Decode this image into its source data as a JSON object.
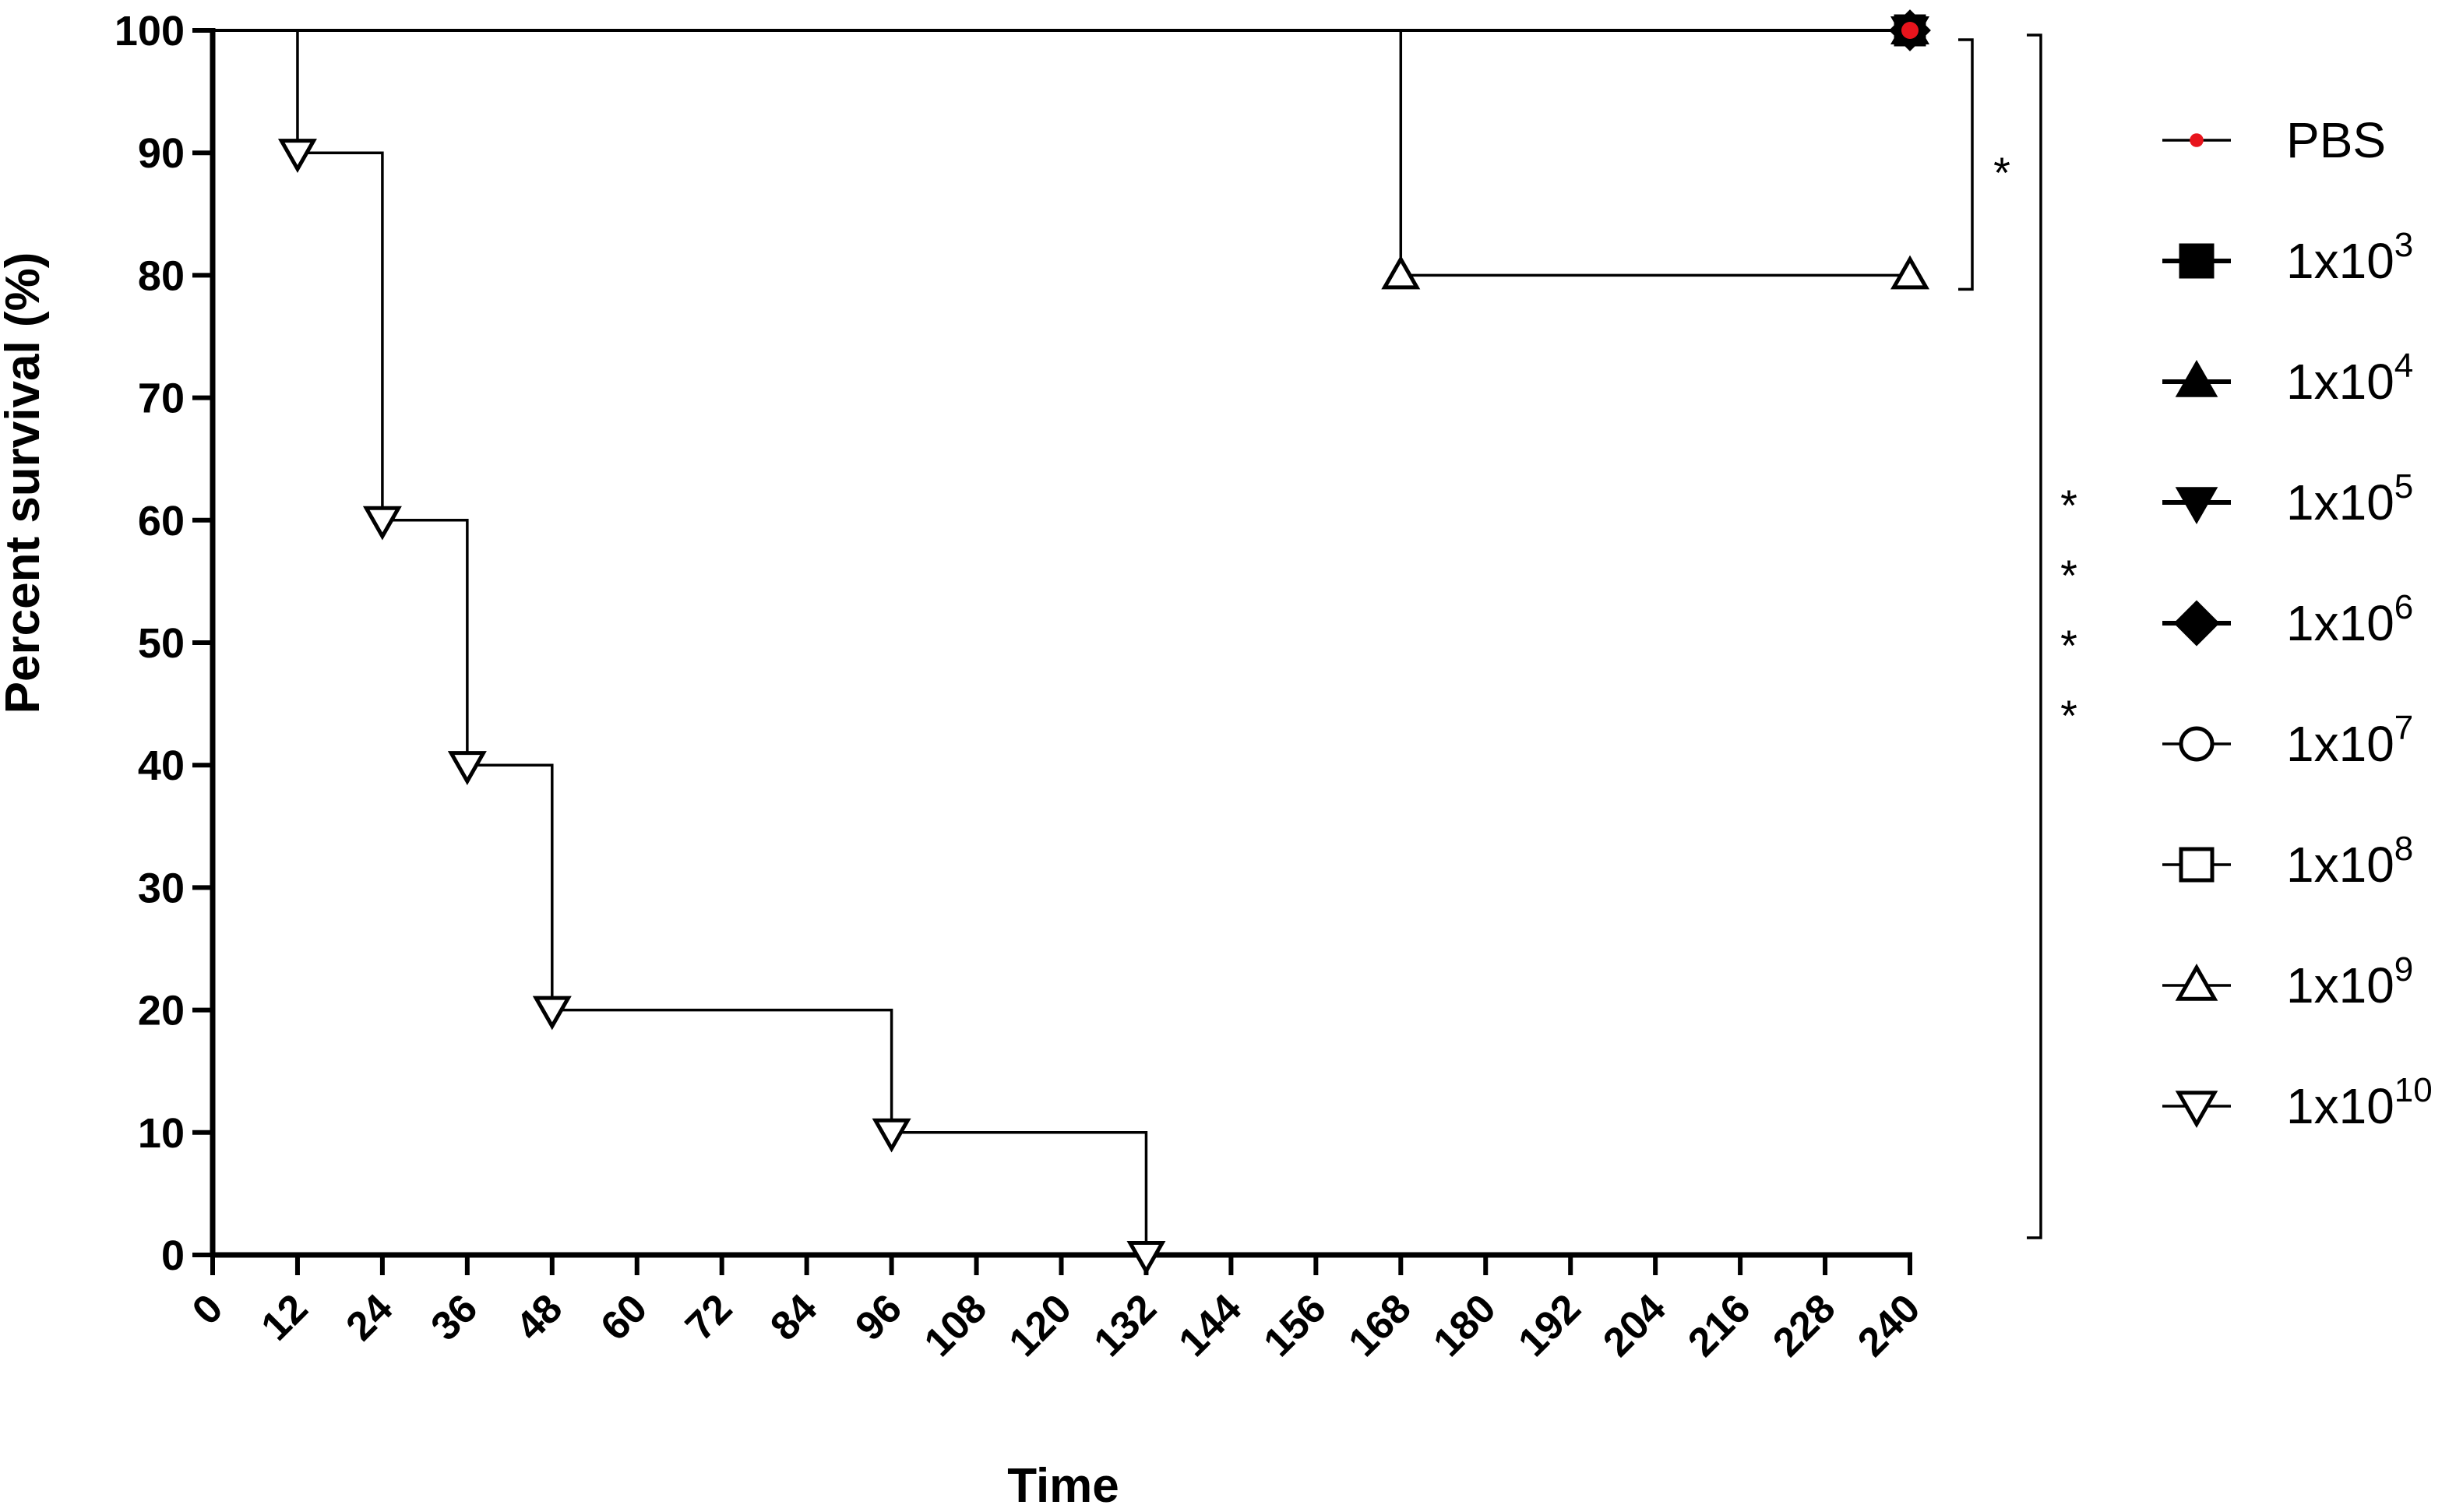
{
  "chart_data": {
    "type": "line",
    "subtype": "kaplan-meier step",
    "xlabel": "Time",
    "ylabel": "Percent survival (%)",
    "xlim": [
      0,
      240
    ],
    "ylim": [
      0,
      100
    ],
    "xticks": [
      0,
      12,
      24,
      36,
      48,
      60,
      72,
      84,
      96,
      108,
      120,
      132,
      144,
      156,
      168,
      180,
      192,
      204,
      216,
      228,
      240
    ],
    "yticks": [
      0,
      10,
      20,
      30,
      40,
      50,
      60,
      70,
      80,
      90,
      100
    ],
    "legend_position": "right",
    "series": [
      {
        "name": "PBS",
        "sup": "",
        "marker": "dot",
        "color": "#e8141c",
        "x": [
          0,
          240
        ],
        "y": [
          100,
          100
        ]
      },
      {
        "name": "1x10",
        "sup": "3",
        "marker": "square-filled",
        "color": "#000000",
        "x": [
          0,
          240
        ],
        "y": [
          100,
          100
        ]
      },
      {
        "name": "1x10",
        "sup": "4",
        "marker": "triangle-up-filled",
        "color": "#000000",
        "x": [
          0,
          240
        ],
        "y": [
          100,
          100
        ]
      },
      {
        "name": "1x10",
        "sup": "5",
        "marker": "triangle-down-filled",
        "color": "#000000",
        "x": [
          0,
          240
        ],
        "y": [
          100,
          100
        ]
      },
      {
        "name": "1x10",
        "sup": "6",
        "marker": "diamond-filled",
        "color": "#000000",
        "x": [
          0,
          240
        ],
        "y": [
          100,
          100
        ]
      },
      {
        "name": "1x10",
        "sup": "7",
        "marker": "circle-open",
        "color": "#000000",
        "x": [
          0,
          240
        ],
        "y": [
          100,
          100
        ]
      },
      {
        "name": "1x10",
        "sup": "8",
        "marker": "square-open",
        "color": "#000000",
        "x": [
          0,
          240
        ],
        "y": [
          100,
          100
        ]
      },
      {
        "name": "1x10",
        "sup": "9",
        "marker": "triangle-up-open",
        "color": "#000000",
        "x": [
          0,
          168,
          240
        ],
        "y": [
          100,
          80,
          80
        ]
      },
      {
        "name": "1x10",
        "sup": "10",
        "marker": "triangle-down-open",
        "color": "#000000",
        "x": [
          0,
          12,
          24,
          36,
          48,
          96,
          132
        ],
        "y": [
          100,
          90,
          60,
          40,
          20,
          10,
          0
        ]
      }
    ],
    "annotations": [
      {
        "text": "*",
        "bracket_y": [
          80,
          100
        ]
      },
      {
        "text": "****",
        "bracket_y": [
          0,
          100
        ]
      }
    ]
  }
}
